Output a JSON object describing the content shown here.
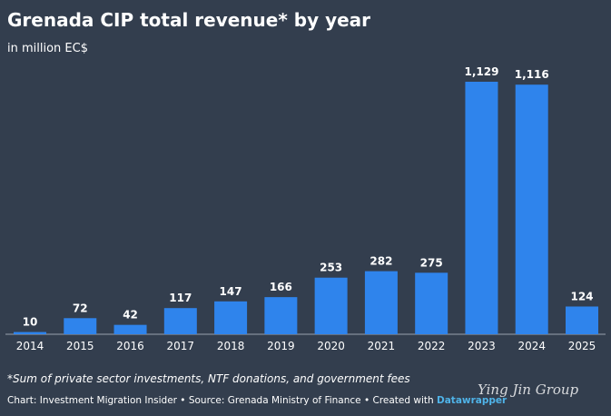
{
  "chart_data": {
    "type": "bar",
    "title": "Grenada CIP total revenue* by year",
    "subtitle": "in million EC$",
    "categories": [
      "2014",
      "2015",
      "2016",
      "2017",
      "2018",
      "2019",
      "2020",
      "2021",
      "2022",
      "2023",
      "2024",
      "2025"
    ],
    "values": [
      10,
      72,
      42,
      117,
      147,
      166,
      253,
      282,
      275,
      1129,
      1116,
      124
    ],
    "value_labels": [
      "10",
      "72",
      "42",
      "117",
      "147",
      "166",
      "253",
      "282",
      "275",
      "1,129",
      "1,116",
      "124"
    ],
    "color": "#2f84ec",
    "footnote": "*Sum of private sector investments, NTF donations, and government fees",
    "credit": "Chart: Investment Migration Insider • Source: Grenada Ministry of Finance • Created with ",
    "credit_link": "Datawrapper",
    "watermark": "Ying Jin Group"
  }
}
